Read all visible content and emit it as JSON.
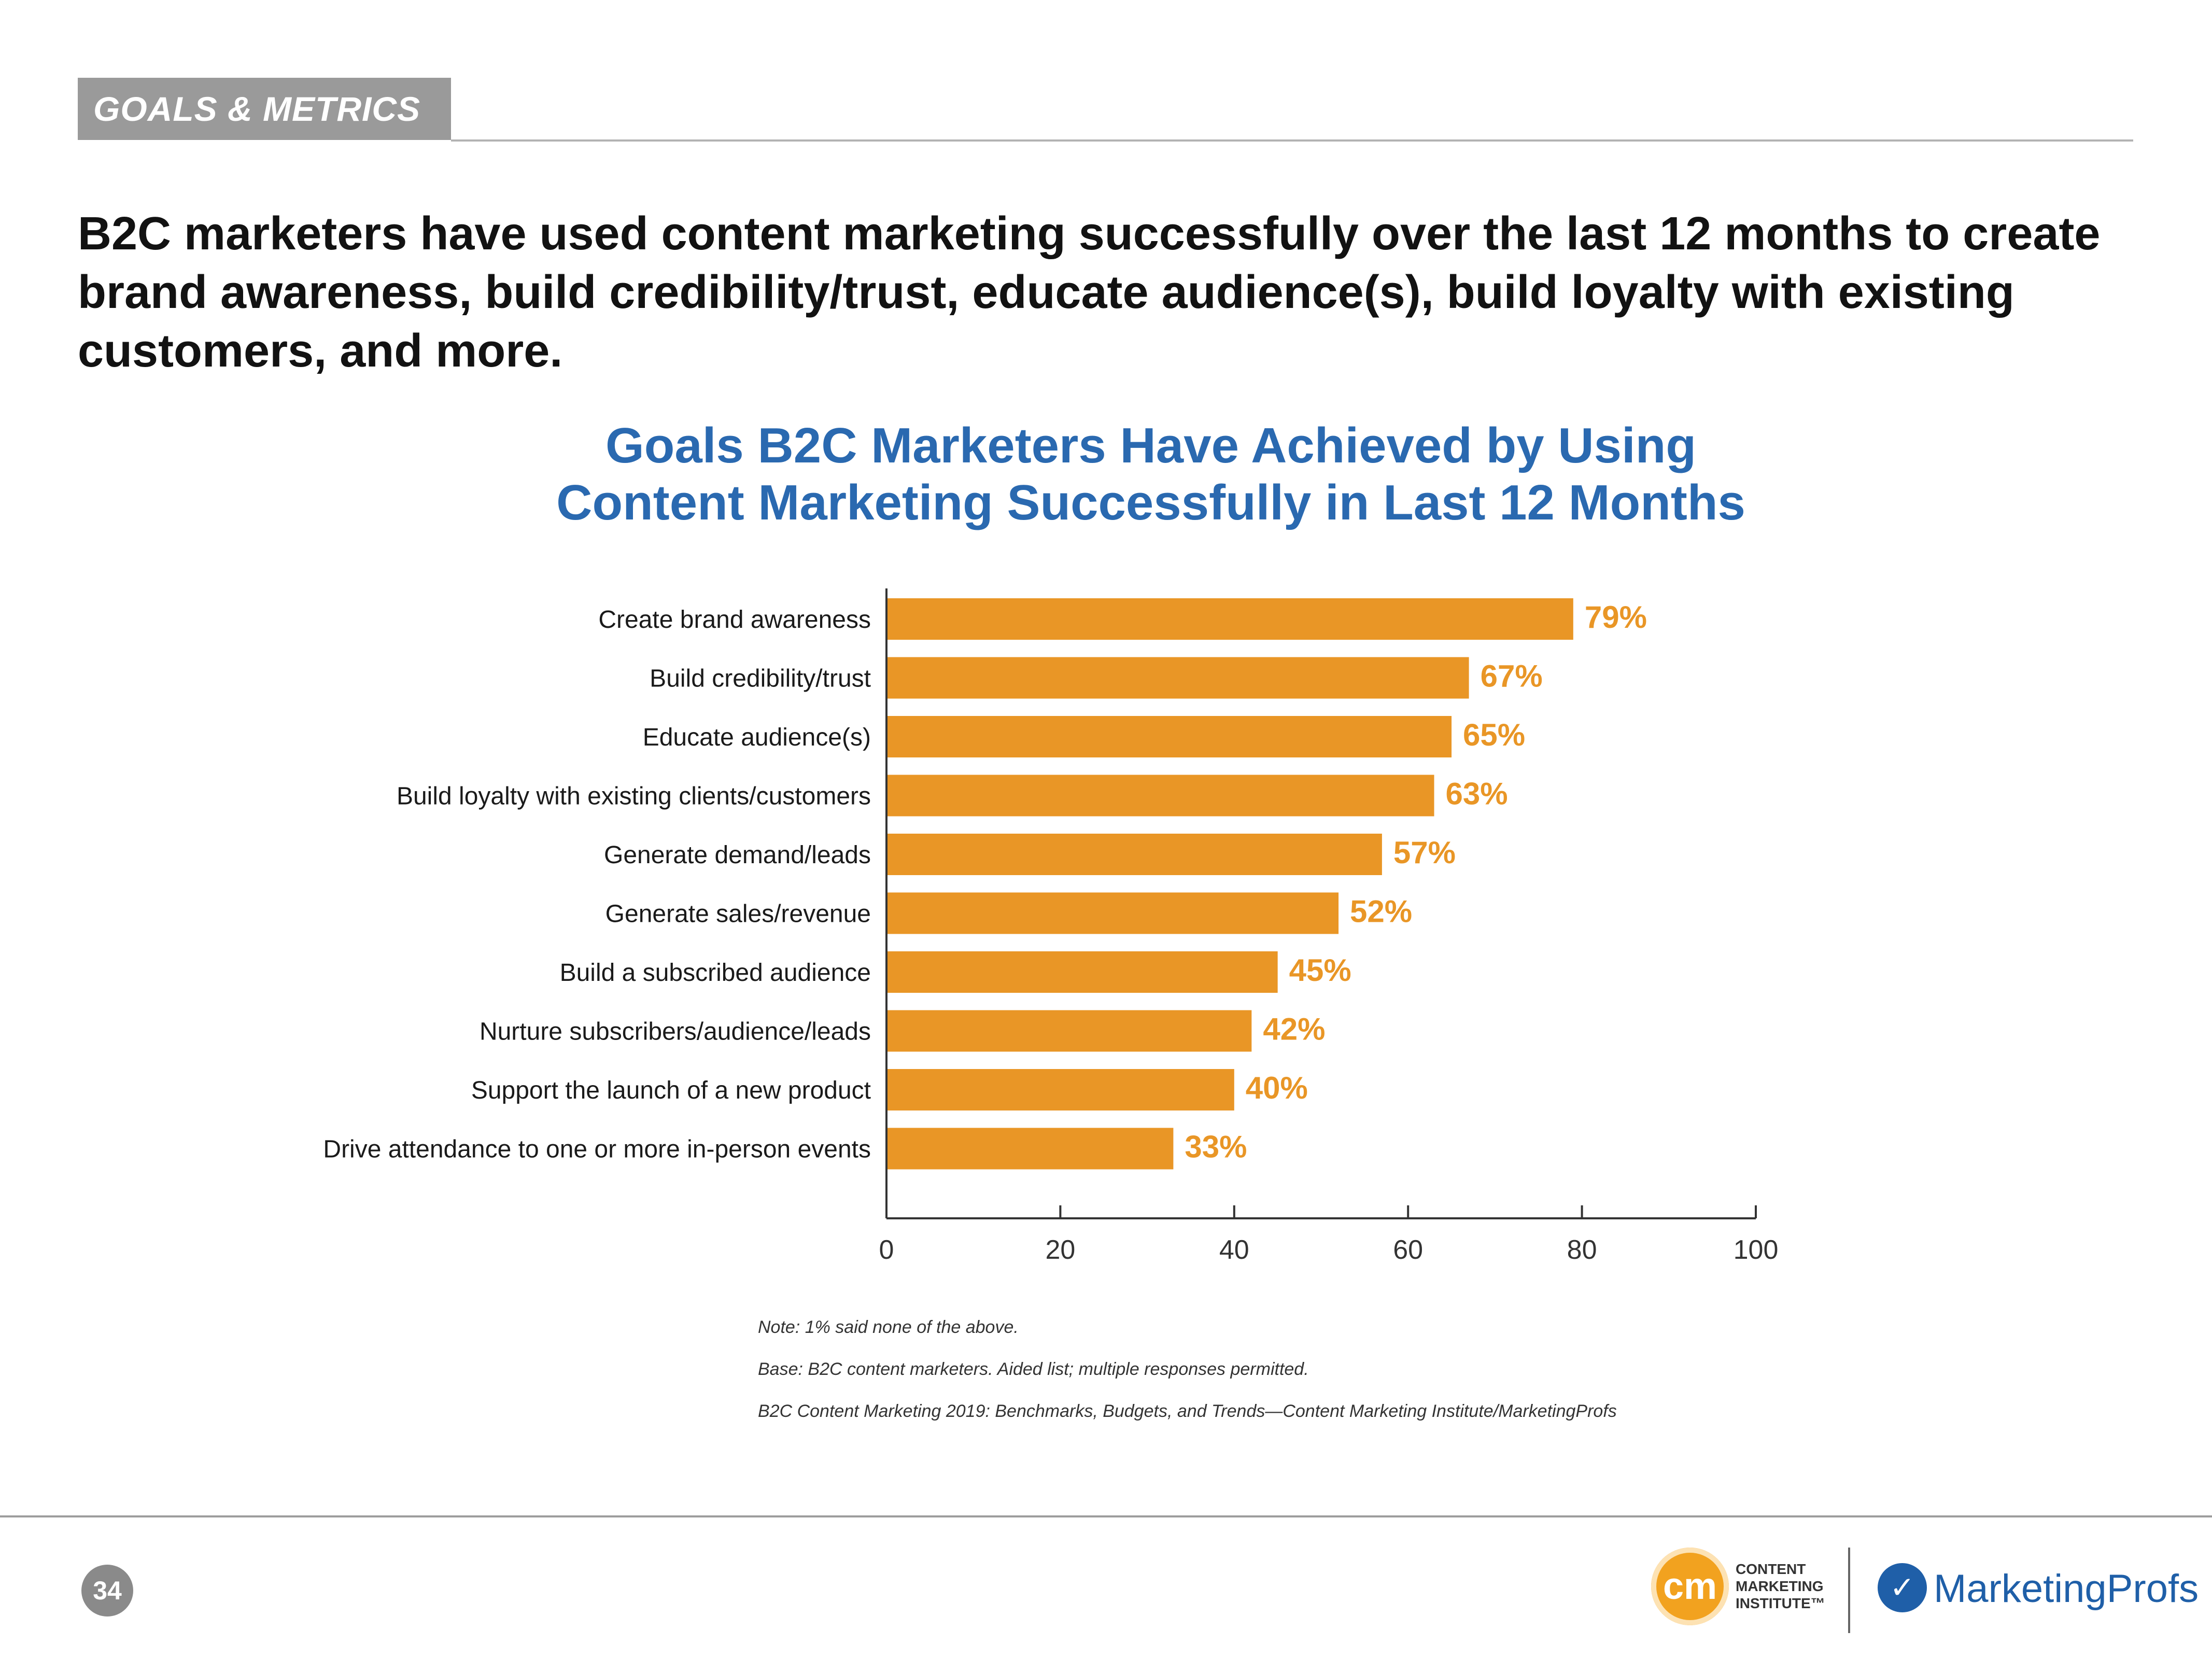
{
  "header": {
    "section_label": "GOALS & METRICS"
  },
  "headline": "B2C marketers have used content marketing successfully over the last 12 months to create brand awareness, build credibility/trust, educate audience(s), build loyalty with existing customers, and more.",
  "chart_data": {
    "type": "bar",
    "orientation": "horizontal",
    "title": "Goals B2C Marketers Have Achieved by Using Content Marketing Successfully in Last 12 Months",
    "title_lines": [
      "Goals B2C Marketers Have Achieved by Using",
      "Content Marketing Successfully in Last 12 Months"
    ],
    "categories": [
      "Create brand awareness",
      "Build credibility/trust",
      "Educate audience(s)",
      "Build loyalty with existing clients/customers",
      "Generate demand/leads",
      "Generate sales/revenue",
      "Build a subscribed audience",
      "Nurture subscribers/audience/leads",
      "Support the launch of a new product",
      "Drive attendance to one or more in-person events"
    ],
    "values": [
      79,
      67,
      65,
      63,
      57,
      52,
      45,
      42,
      40,
      33
    ],
    "value_labels": [
      "79%",
      "67%",
      "65%",
      "63%",
      "57%",
      "52%",
      "45%",
      "42%",
      "40%",
      "33%"
    ],
    "xlim": [
      0,
      100
    ],
    "xticks": [
      "0",
      "20",
      "40",
      "60",
      "80",
      "100"
    ],
    "xlabel": "",
    "ylabel": "",
    "grid": false,
    "bar_color": "#e99626",
    "label_color": "#e99626"
  },
  "notes": [
    "Note: 1% said none of the above.",
    "Base: B2C content marketers. Aided list; multiple responses permitted.",
    "B2C Content Marketing 2019: Benchmarks, Budgets, and Trends—Content Marketing Institute/MarketingProfs"
  ],
  "footer": {
    "page_number": "34",
    "cmi_mark": "cm",
    "cmi_text_lines": [
      "CONTENT",
      "MARKETING",
      "INSTITUTE™"
    ],
    "mp_mark": "✓",
    "mp_text": "MarketingProfs"
  }
}
